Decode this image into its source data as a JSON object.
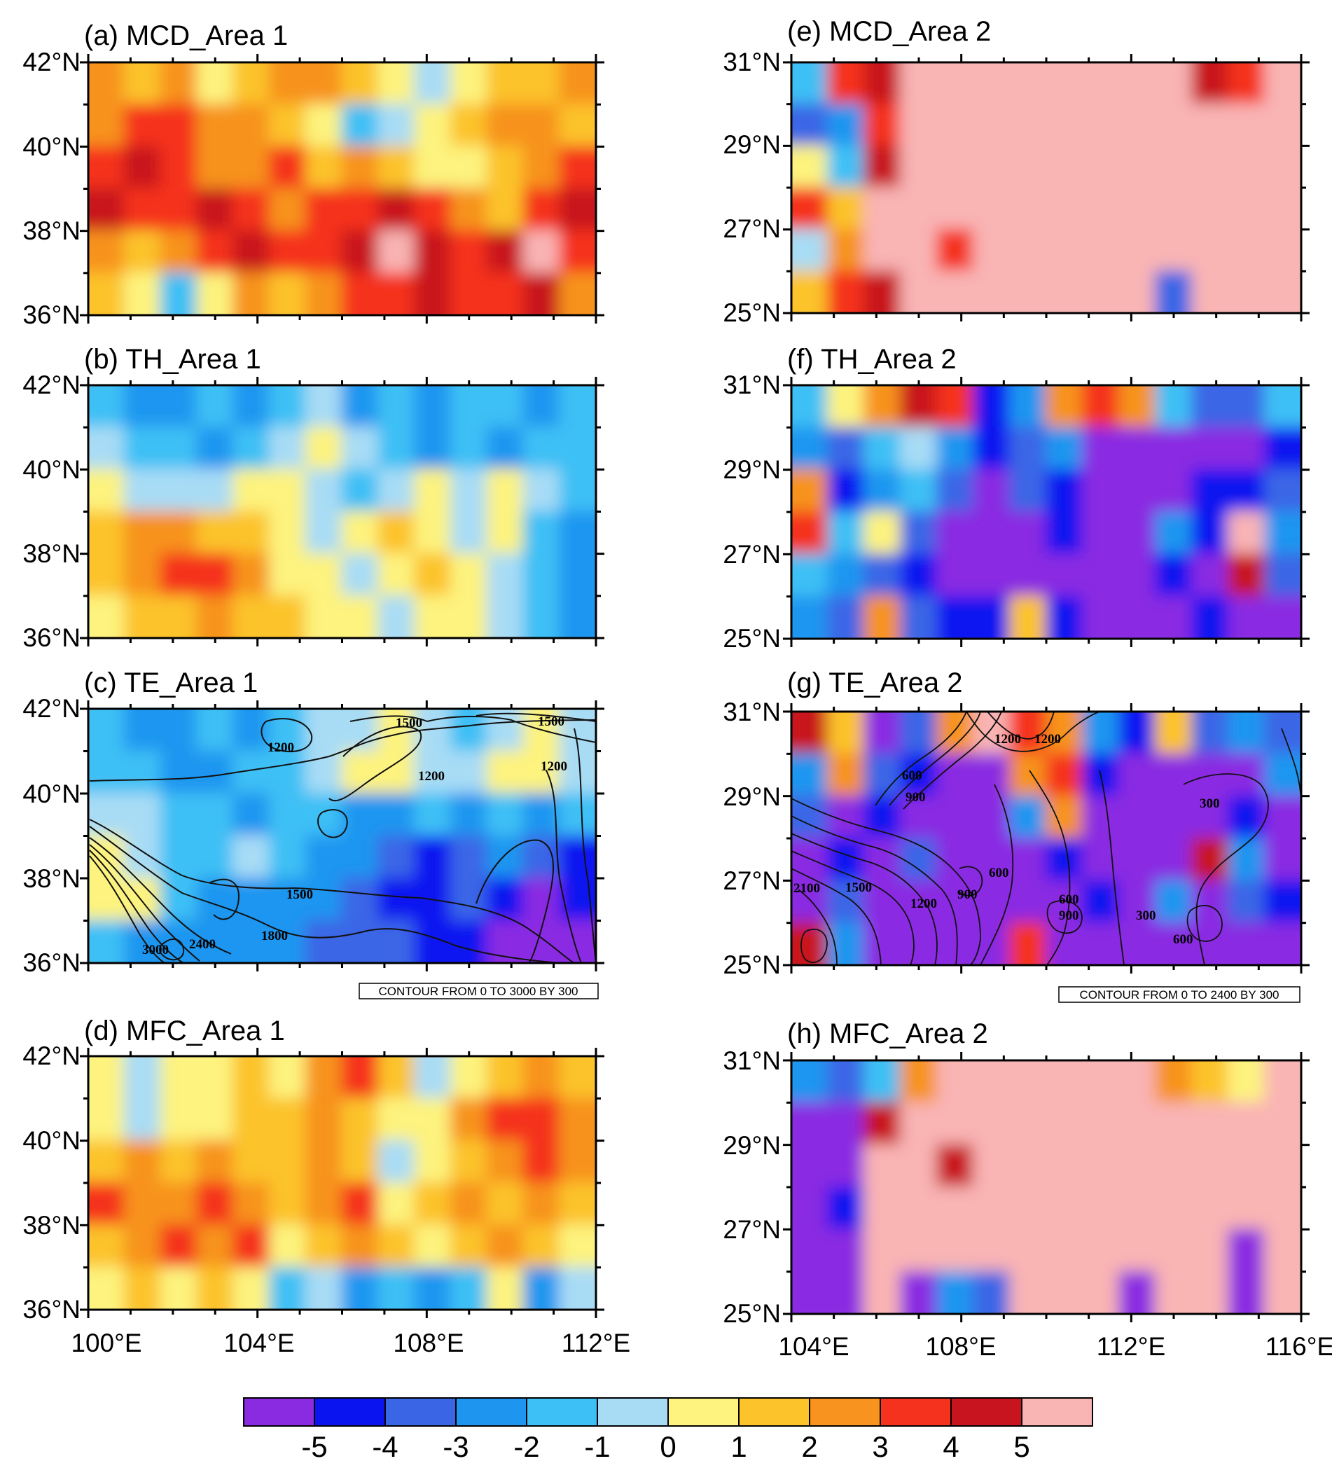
{
  "chart_data": {
    "type": "contour-map",
    "colorbar": {
      "colors": [
        "#8a2be2",
        "#0a14f0",
        "#3a66e6",
        "#1e96f0",
        "#3cc0f5",
        "#a8dcf5",
        "#fdf37e",
        "#fcc32a",
        "#f7931e",
        "#f5321e",
        "#c8141e",
        "#f9b4b4"
      ],
      "labels": [
        "-5",
        "-4",
        "-3",
        "-2",
        "-1",
        "0",
        "1",
        "2",
        "3",
        "4",
        "5"
      ],
      "levels": [
        -5,
        -4,
        -3,
        -2,
        -1,
        0,
        1,
        2,
        3,
        4,
        5
      ]
    },
    "panels": [
      {
        "id": "a",
        "title": "(a) MCD_Area 1",
        "xlim": [
          100,
          112
        ],
        "ylim": [
          36,
          42
        ],
        "y_ticks": [
          "36°N",
          "38°N",
          "40°N",
          "42°N"
        ],
        "x_ticks": [],
        "field_levels": [
          [
            3,
            2,
            3,
            1,
            2,
            3,
            3,
            2,
            1,
            0,
            1,
            2,
            2,
            3
          ],
          [
            3,
            4,
            4,
            3,
            3,
            2,
            1,
            -1,
            0,
            1,
            2,
            3,
            3,
            2
          ],
          [
            4,
            5,
            4,
            3,
            3,
            4,
            2,
            3,
            2,
            1,
            1,
            2,
            3,
            4
          ],
          [
            5,
            4,
            4,
            5,
            4,
            3,
            4,
            4,
            5,
            4,
            3,
            2,
            4,
            5
          ],
          [
            3,
            2,
            3,
            4,
            5,
            4,
            4,
            5,
            6,
            5,
            4,
            5,
            6,
            4
          ],
          [
            2,
            1,
            -1,
            1,
            3,
            2,
            3,
            4,
            4,
            5,
            4,
            4,
            5,
            3
          ]
        ]
      },
      {
        "id": "b",
        "title": "(b) TH_Area 1",
        "xlim": [
          100,
          112
        ],
        "ylim": [
          36,
          42
        ],
        "y_ticks": [
          "36°N",
          "38°N",
          "40°N",
          "42°N"
        ],
        "x_ticks": [],
        "field_levels": [
          [
            -1,
            -2,
            -2,
            -1,
            -2,
            -1,
            0,
            -2,
            -1,
            -2,
            -1,
            -1,
            -2,
            -1
          ],
          [
            0,
            -1,
            -1,
            -2,
            -1,
            0,
            1,
            0,
            -1,
            -2,
            -1,
            -2,
            -1,
            -1
          ],
          [
            1,
            0,
            0,
            0,
            1,
            1,
            0,
            -1,
            0,
            1,
            0,
            1,
            0,
            -1
          ],
          [
            2,
            3,
            3,
            2,
            2,
            1,
            0,
            1,
            2,
            1,
            0,
            1,
            -1,
            -2
          ],
          [
            2,
            3,
            4,
            4,
            3,
            1,
            1,
            0,
            1,
            2,
            1,
            0,
            -1,
            -2
          ],
          [
            1,
            2,
            2,
            3,
            2,
            2,
            1,
            1,
            0,
            1,
            1,
            0,
            -1,
            -2
          ]
        ]
      },
      {
        "id": "c",
        "title": "(c) TE_Area 1",
        "xlim": [
          100,
          112
        ],
        "ylim": [
          36,
          42
        ],
        "y_ticks": [
          "36°N",
          "38°N",
          "40°N",
          "42°N"
        ],
        "x_ticks": [],
        "contour_note": "CONTOUR FROM 0 TO 3000 BY 300",
        "contour_labels": [
          "1500",
          "1500",
          "1200",
          "1200",
          "1200",
          "1500",
          "1800",
          "2400",
          "3000"
        ],
        "field_levels": [
          [
            -1,
            -2,
            -2,
            -1,
            -2,
            -1,
            0,
            0,
            1,
            0,
            -1,
            0,
            1,
            0
          ],
          [
            -1,
            -1,
            -2,
            -2,
            -1,
            -1,
            0,
            1,
            1,
            0,
            0,
            1,
            1,
            0
          ],
          [
            0,
            0,
            -1,
            -1,
            -2,
            -1,
            -1,
            -2,
            -2,
            -1,
            -2,
            -1,
            -2,
            -1
          ],
          [
            1,
            0,
            -1,
            -1,
            0,
            -1,
            -2,
            -2,
            -3,
            -4,
            -3,
            -2,
            -3,
            -4
          ],
          [
            1,
            1,
            -1,
            -2,
            -2,
            -2,
            -2,
            -3,
            -4,
            -4,
            -3,
            -4,
            -5,
            -4
          ],
          [
            -1,
            -2,
            -2,
            -2,
            -2,
            -2,
            -3,
            -3,
            -3,
            -4,
            -4,
            -5,
            -5,
            -5
          ]
        ]
      },
      {
        "id": "d",
        "title": "(d) MFC_Area 1",
        "xlim": [
          100,
          112
        ],
        "ylim": [
          36,
          42
        ],
        "y_ticks": [
          "36°N",
          "38°N",
          "40°N",
          "42°N"
        ],
        "x_ticks": [
          "100°E",
          "104°E",
          "108°E",
          "112°E"
        ],
        "field_levels": [
          [
            1,
            0,
            1,
            1,
            2,
            1,
            3,
            4,
            2,
            0,
            1,
            2,
            3,
            2
          ],
          [
            1,
            0,
            1,
            1,
            2,
            2,
            3,
            2,
            1,
            1,
            3,
            4,
            4,
            3
          ],
          [
            2,
            3,
            2,
            3,
            2,
            2,
            3,
            2,
            0,
            1,
            2,
            3,
            4,
            3
          ],
          [
            4,
            3,
            3,
            4,
            3,
            2,
            3,
            4,
            1,
            2,
            3,
            2,
            3,
            2
          ],
          [
            2,
            3,
            4,
            3,
            4,
            1,
            2,
            3,
            2,
            1,
            2,
            3,
            2,
            1
          ],
          [
            1,
            2,
            1,
            2,
            1,
            -1,
            0,
            -2,
            -1,
            -2,
            -1,
            1,
            -2,
            0
          ]
        ]
      },
      {
        "id": "e",
        "title": "(e) MCD_Area 2",
        "xlim": [
          104,
          116
        ],
        "ylim": [
          25,
          31
        ],
        "y_ticks": [
          "25°N",
          "27°N",
          "29°N",
          "31°N"
        ],
        "x_ticks": [],
        "field_levels": [
          [
            -1,
            4,
            5,
            6,
            6,
            6,
            6,
            6,
            6,
            6,
            6,
            5,
            4,
            6
          ],
          [
            -3,
            -2,
            4,
            6,
            6,
            6,
            6,
            6,
            6,
            6,
            6,
            6,
            6,
            6
          ],
          [
            1,
            -1,
            5,
            6,
            6,
            6,
            6,
            6,
            6,
            6,
            6,
            6,
            6,
            6
          ],
          [
            4,
            2,
            6,
            6,
            6,
            6,
            6,
            6,
            6,
            6,
            6,
            6,
            6,
            6
          ],
          [
            0,
            3,
            6,
            6,
            4,
            6,
            6,
            6,
            6,
            6,
            6,
            6,
            6,
            6
          ],
          [
            2,
            4,
            5,
            6,
            6,
            6,
            6,
            6,
            6,
            6,
            -3,
            6,
            6,
            6
          ]
        ]
      },
      {
        "id": "f",
        "title": "(f) TH_Area 2",
        "xlim": [
          104,
          116
        ],
        "ylim": [
          25,
          31
        ],
        "y_ticks": [
          "25°N",
          "27°N",
          "29°N",
          "31°N"
        ],
        "x_ticks": [],
        "field_levels": [
          [
            -1,
            1,
            3,
            5,
            4,
            -4,
            -2,
            3,
            4,
            3,
            -1,
            -3,
            -3,
            -1
          ],
          [
            -2,
            -3,
            -1,
            0,
            -2,
            -4,
            -3,
            -2,
            -5,
            -5,
            -5,
            -5,
            -5,
            -4
          ],
          [
            3,
            -4,
            -2,
            -1,
            -3,
            -5,
            -3,
            -4,
            -5,
            -5,
            -5,
            -4,
            -4,
            -3
          ],
          [
            4,
            -1,
            1,
            -3,
            -5,
            -5,
            -5,
            -4,
            -5,
            -5,
            -2,
            -4,
            6,
            -2
          ],
          [
            -1,
            -2,
            -3,
            -4,
            -5,
            -5,
            -5,
            -5,
            -5,
            -5,
            -4,
            -5,
            5,
            -3
          ],
          [
            -2,
            -3,
            3,
            -3,
            -4,
            -4,
            2,
            -4,
            -5,
            -5,
            -5,
            -4,
            -5,
            -5
          ]
        ]
      },
      {
        "id": "g",
        "title": "(g) TE_Area 2",
        "xlim": [
          104,
          116
        ],
        "ylim": [
          25,
          31
        ],
        "y_ticks": [
          "25°N",
          "27°N",
          "29°N",
          "31°N"
        ],
        "x_ticks": [],
        "contour_note": "CONTOUR FROM 0 TO 2400 BY 300",
        "contour_labels": [
          "1200",
          "1200",
          "600",
          "900",
          "300",
          "2100",
          "1500",
          "1200",
          "900",
          "600",
          "600",
          "900",
          "300",
          "600"
        ],
        "field_levels": [
          [
            5,
            2,
            -5,
            -3,
            3,
            6,
            4,
            3,
            -2,
            -4,
            2,
            -3,
            -2,
            -3
          ],
          [
            -2,
            3,
            -3,
            -4,
            -5,
            -5,
            3,
            4,
            -4,
            -5,
            -5,
            -5,
            -5,
            -2
          ],
          [
            -3,
            -5,
            -4,
            -5,
            -5,
            -5,
            -2,
            3,
            -5,
            -5,
            -5,
            -5,
            -4,
            -5
          ],
          [
            -5,
            -4,
            -5,
            -3,
            -5,
            -5,
            -5,
            -4,
            -5,
            -5,
            -5,
            5,
            -2,
            -5
          ],
          [
            -5,
            -3,
            -5,
            -5,
            -5,
            -5,
            -5,
            -5,
            -4,
            -5,
            -2,
            -5,
            -3,
            -4
          ],
          [
            5,
            -2,
            -5,
            -5,
            -5,
            -5,
            4,
            -5,
            -5,
            -5,
            -5,
            -5,
            -5,
            -5
          ]
        ]
      },
      {
        "id": "h",
        "title": "(h) MFC_Area 2",
        "xlim": [
          104,
          116
        ],
        "ylim": [
          25,
          31
        ],
        "y_ticks": [
          "25°N",
          "27°N",
          "29°N",
          "31°N"
        ],
        "x_ticks": [
          "104°E",
          "108°E",
          "112°E",
          "116°E"
        ],
        "field_levels": [
          [
            -2,
            -3,
            -1,
            3,
            6,
            6,
            6,
            6,
            6,
            6,
            3,
            2,
            1,
            6
          ],
          [
            -5,
            -5,
            5,
            6,
            6,
            6,
            6,
            6,
            6,
            6,
            6,
            6,
            6,
            6
          ],
          [
            -5,
            -5,
            6,
            6,
            5,
            6,
            6,
            6,
            6,
            6,
            6,
            6,
            6,
            6
          ],
          [
            -5,
            -4,
            6,
            6,
            6,
            6,
            6,
            6,
            6,
            6,
            6,
            6,
            6,
            6
          ],
          [
            -5,
            -5,
            6,
            6,
            6,
            6,
            6,
            6,
            6,
            6,
            6,
            6,
            -5,
            6
          ],
          [
            -5,
            -5,
            6,
            -5,
            -2,
            -3,
            6,
            6,
            6,
            -5,
            6,
            6,
            -5,
            6
          ]
        ]
      }
    ]
  }
}
